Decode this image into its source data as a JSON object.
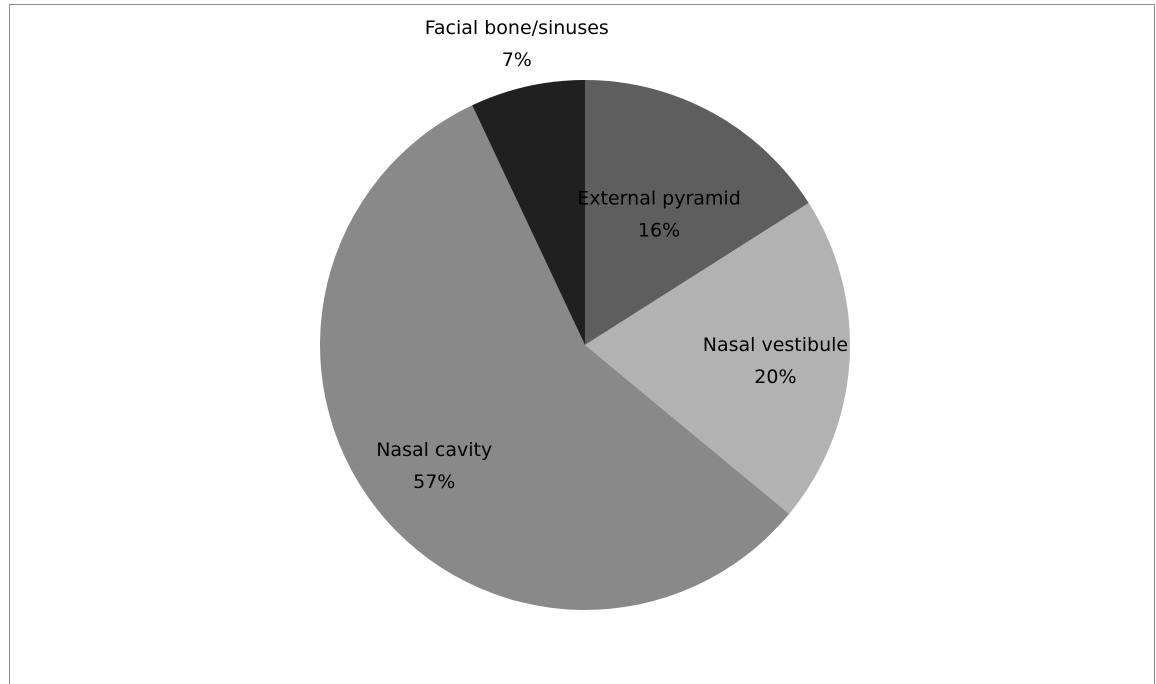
{
  "chart_data": {
    "type": "pie",
    "title": "",
    "slices": [
      {
        "label": "External pyramid",
        "value": 16,
        "value_label": "16%",
        "color": "#5e5e5e"
      },
      {
        "label": "Nasal vestibule",
        "value": 20,
        "value_label": "20%",
        "color": "#b2b2b2"
      },
      {
        "label": "Nasal cavity",
        "value": 57,
        "value_label": "57%",
        "color": "#898989"
      },
      {
        "label": "Facial bone/sinuses",
        "value": 7,
        "value_label": "7%",
        "color": "#202020"
      }
    ],
    "start_angle_deg": 0,
    "direction": "clockwise",
    "legend": "none",
    "labels_position": "inside / outside for small slice"
  }
}
